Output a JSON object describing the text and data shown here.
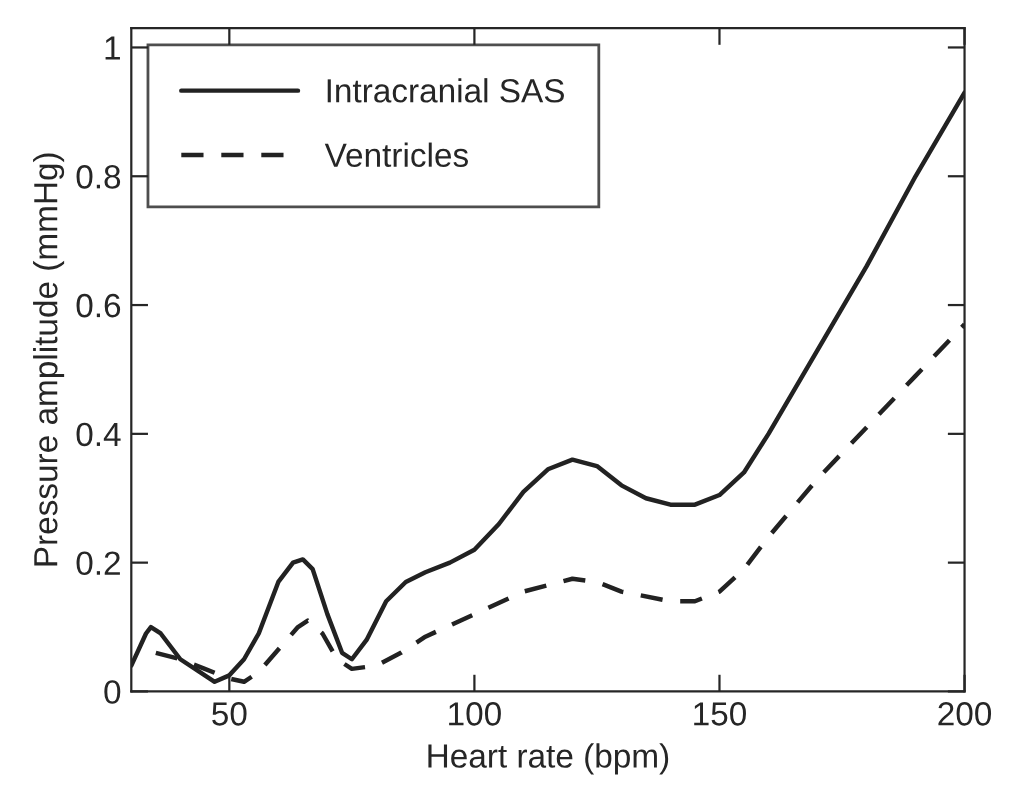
{
  "chart_data": {
    "type": "line",
    "xlabel": "Heart rate (bpm)",
    "ylabel": "Pressure amplitude (mmHg)",
    "xlim": [
      30,
      200
    ],
    "ylim": [
      0,
      1.03
    ],
    "xticks": [
      50,
      100,
      150,
      200
    ],
    "yticks": [
      0,
      0.2,
      0.4,
      0.6,
      0.8,
      1
    ],
    "grid": false,
    "legend": "top left",
    "series": [
      {
        "name": "Intracranial SAS",
        "color": "#222222",
        "line_style": "solid",
        "x": [
          30,
          33,
          34,
          36,
          40,
          44,
          47,
          50,
          53,
          56,
          60,
          63,
          65,
          67,
          70,
          73,
          75,
          78,
          82,
          86,
          90,
          95,
          100,
          105,
          110,
          115,
          120,
          125,
          130,
          135,
          140,
          145,
          150,
          155,
          160,
          170,
          180,
          190,
          200
        ],
        "values": [
          0.04,
          0.09,
          0.1,
          0.09,
          0.05,
          0.03,
          0.015,
          0.025,
          0.05,
          0.09,
          0.17,
          0.2,
          0.205,
          0.19,
          0.12,
          0.06,
          0.05,
          0.08,
          0.14,
          0.17,
          0.185,
          0.2,
          0.22,
          0.26,
          0.31,
          0.345,
          0.36,
          0.35,
          0.32,
          0.3,
          0.29,
          0.29,
          0.305,
          0.34,
          0.4,
          0.53,
          0.66,
          0.8,
          0.93
        ]
      },
      {
        "name": "Ventricles",
        "color": "#222222",
        "line_style": "dashed",
        "x": [
          35,
          40,
          45,
          50,
          53,
          56,
          60,
          64,
          66,
          69,
          72,
          75,
          80,
          85,
          90,
          100,
          110,
          120,
          125,
          130,
          140,
          145,
          150,
          155,
          160,
          170,
          180,
          190,
          200
        ],
        "values": [
          0.06,
          0.05,
          0.035,
          0.02,
          0.015,
          0.03,
          0.065,
          0.1,
          0.11,
          0.09,
          0.05,
          0.035,
          0.04,
          0.06,
          0.085,
          0.12,
          0.155,
          0.175,
          0.17,
          0.155,
          0.14,
          0.14,
          0.155,
          0.19,
          0.24,
          0.33,
          0.41,
          0.49,
          0.57
        ]
      }
    ]
  }
}
